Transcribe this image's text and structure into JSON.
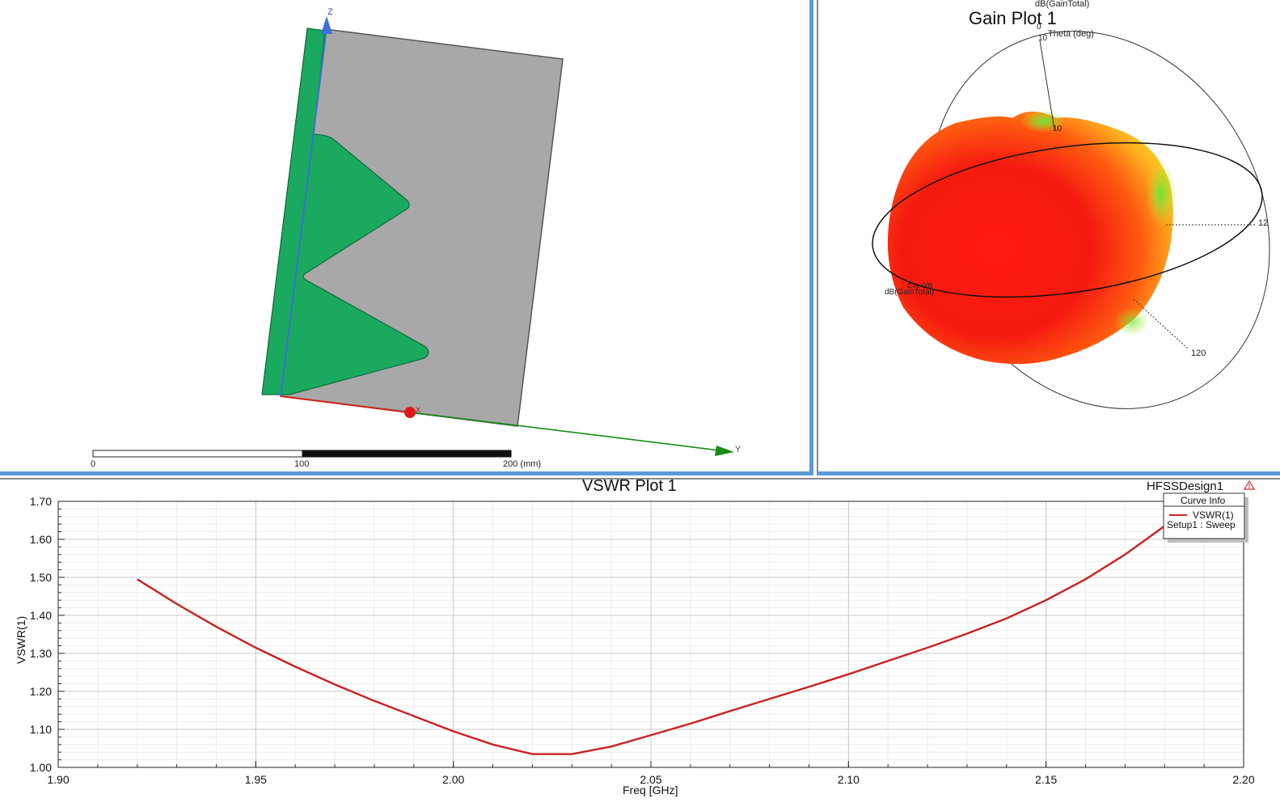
{
  "model_view": {
    "axis_labels": {
      "z": "Z",
      "y": "Y",
      "x": "X"
    },
    "scale_bar": {
      "ticks": [
        "0",
        "100",
        "200 (mm)"
      ]
    },
    "colors": {
      "substrate": "#a8a8a8",
      "patch": "#1aa95e",
      "z_axis": "#3b6fd8",
      "y_axis": "#1a8a1a",
      "x_axis": "#d42020"
    }
  },
  "gain_plot": {
    "title": "Gain Plot 1",
    "top_label": "dB(GainTotal)",
    "theta_label": "Theta (deg)",
    "labels": {
      "zero": "0",
      "ten": "10",
      "ten_b": "10",
      "one_twenty": "120",
      "one_twenty_right": "12",
      "db_label": "dB(GainTotal)",
      "db_small": "2.4e-005"
    }
  },
  "vswr_plot": {
    "title": "VSWR Plot 1",
    "design_label": "HFSSDesign1",
    "legend": {
      "header": "Curve Info",
      "curve_name": "VSWR(1)",
      "curve_setup": "Setup1 : Sweep"
    }
  },
  "chart_data": {
    "type": "line",
    "title": "VSWR Plot 1",
    "xlabel": "Freq [GHz]",
    "ylabel": "VSWR(1)",
    "xlim": [
      1.9,
      2.2
    ],
    "ylim": [
      1.0,
      1.7
    ],
    "x_ticks": [
      "1.90",
      "1.95",
      "2.00",
      "2.05",
      "2.10",
      "2.15",
      "2.20"
    ],
    "y_ticks": [
      "1.00",
      "1.10",
      "1.20",
      "1.30",
      "1.40",
      "1.50",
      "1.60",
      "1.70"
    ],
    "grid": true,
    "legend_position": "top-right",
    "series": [
      {
        "name": "VSWR(1)",
        "color": "#cc2020",
        "x": [
          1.92,
          1.93,
          1.94,
          1.95,
          1.96,
          1.97,
          1.98,
          1.99,
          2.0,
          2.01,
          2.02,
          2.03,
          2.04,
          2.05,
          2.06,
          2.07,
          2.08,
          2.09,
          2.1,
          2.11,
          2.12,
          2.13,
          2.14,
          2.15,
          2.16,
          2.17,
          2.18
        ],
        "y": [
          1.495,
          1.43,
          1.37,
          1.315,
          1.265,
          1.218,
          1.175,
          1.135,
          1.095,
          1.06,
          1.035,
          1.035,
          1.055,
          1.085,
          1.115,
          1.148,
          1.18,
          1.212,
          1.245,
          1.28,
          1.315,
          1.352,
          1.392,
          1.44,
          1.495,
          1.56,
          1.635
        ]
      }
    ]
  }
}
